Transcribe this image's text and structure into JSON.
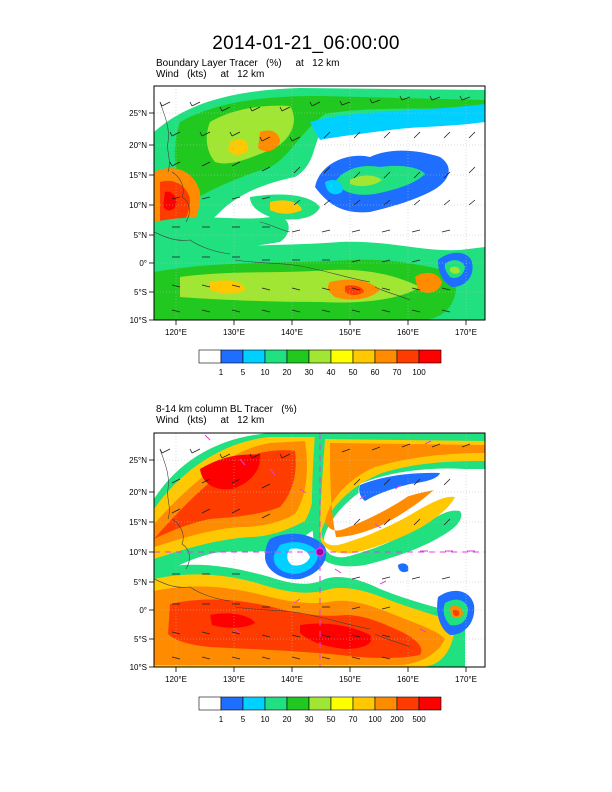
{
  "title": "2014-01-21_06:00:00",
  "panels": [
    {
      "label_line1": "Boundary Layer Tracer   (%)     at   12 km",
      "label_line2": "Wind   (kts)     at   12 km",
      "lat_labels": [
        "25°N",
        "20°N",
        "15°N",
        "10°N",
        "5°N",
        "0°",
        "5°S",
        "10°S"
      ],
      "lon_labels": [
        "120°E",
        "130°E",
        "140°E",
        "150°E",
        "160°E",
        "170°E"
      ],
      "colorbar": {
        "labels": [
          "1",
          "5",
          "10",
          "20",
          "30",
          "40",
          "50",
          "60",
          "70",
          "100"
        ],
        "colors": [
          "#ffffff",
          "#1e6eff",
          "#00d0ff",
          "#20e080",
          "#20c820",
          "#a0e632",
          "#ffff00",
          "#ffc800",
          "#ff8c00",
          "#ff3c00",
          "#ff0000"
        ]
      }
    },
    {
      "label_line1": "8-14 km column BL Tracer   (%)",
      "label_line2": "Wind   (kts)     at   12 km",
      "lat_labels": [
        "25°N",
        "20°N",
        "15°N",
        "10°N",
        "5°N",
        "0°",
        "5°S",
        "10°S"
      ],
      "lon_labels": [
        "120°E",
        "130°E",
        "140°E",
        "150°E",
        "160°E",
        "170°E"
      ],
      "colorbar": {
        "labels": [
          "1",
          "5",
          "10",
          "20",
          "30",
          "50",
          "70",
          "100",
          "200",
          "500"
        ],
        "colors": [
          "#ffffff",
          "#1e6eff",
          "#00d0ff",
          "#20e080",
          "#20c820",
          "#a0e632",
          "#ffff00",
          "#ffc800",
          "#ff8c00",
          "#ff3c00",
          "#ff0000"
        ]
      }
    }
  ]
}
